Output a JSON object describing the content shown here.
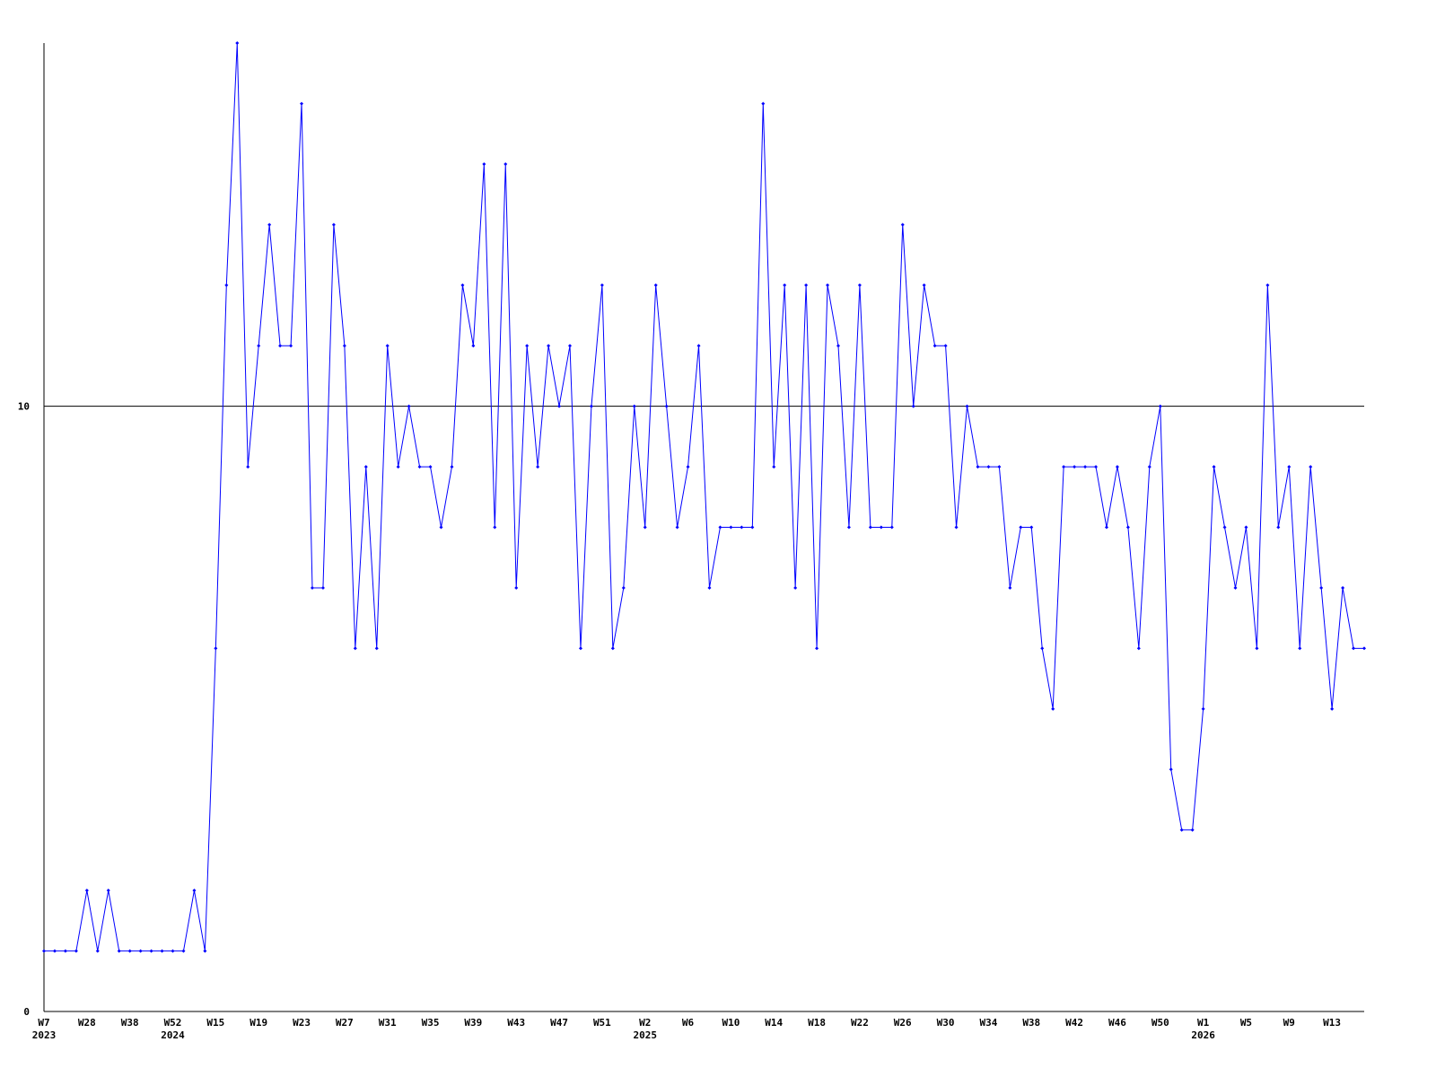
{
  "chart_data": {
    "type": "line",
    "categories": [
      "W7",
      null,
      null,
      null,
      "W28",
      null,
      null,
      null,
      "W38",
      null,
      null,
      null,
      "W52",
      null,
      null,
      null,
      "W15",
      null,
      null,
      null,
      "W19",
      null,
      null,
      null,
      "W23",
      null,
      null,
      null,
      "W27",
      null,
      null,
      null,
      "W31",
      null,
      null,
      null,
      "W35",
      null,
      null,
      null,
      "W39",
      null,
      null,
      null,
      "W43",
      null,
      null,
      null,
      "W47",
      null,
      null,
      null,
      "W51",
      null,
      null,
      null,
      "W2",
      null,
      null,
      null,
      "W6",
      null,
      null,
      null,
      "W10",
      null,
      null,
      null,
      "W14",
      null,
      null,
      null,
      "W18",
      null,
      null,
      null,
      "W22",
      null,
      null,
      null,
      "W26",
      null,
      null,
      null,
      "W30",
      null,
      null,
      null,
      "W34",
      null,
      null,
      null,
      "W38",
      null,
      null,
      null,
      "W42",
      null,
      null,
      null,
      "W46",
      null,
      null,
      null,
      "W50",
      null,
      null,
      null,
      "W1",
      null,
      null,
      null,
      "W5",
      null,
      null,
      null,
      "W9",
      null,
      null,
      null,
      "W13",
      null,
      null,
      null
    ],
    "year_labels": [
      {
        "category_index": 0,
        "label": "2023"
      },
      {
        "category_index": 12,
        "label": "2024"
      },
      {
        "category_index": 56,
        "label": "2025"
      },
      {
        "category_index": 108,
        "label": "2026"
      }
    ],
    "series": [
      {
        "color": "#0000ff",
        "values": [
          1,
          1,
          1,
          1,
          2,
          1,
          2,
          1,
          1,
          1,
          1,
          1,
          1,
          1,
          2,
          1,
          6,
          12,
          16,
          9,
          11,
          13,
          11,
          11,
          15,
          7,
          7,
          13,
          11,
          6,
          9,
          6,
          11,
          9,
          10,
          9,
          9,
          8,
          9,
          12,
          11,
          14,
          8,
          14,
          7,
          11,
          9,
          11,
          10,
          11,
          6,
          10,
          12,
          6,
          7,
          10,
          8,
          12,
          10,
          8,
          9,
          11,
          7,
          8,
          8,
          8,
          8,
          15,
          9,
          12,
          7,
          12,
          6,
          12,
          11,
          8,
          12,
          8,
          8,
          8,
          13,
          10,
          12,
          11,
          11,
          8,
          10,
          9,
          9,
          9,
          7,
          8,
          8,
          6,
          5,
          9,
          9,
          9,
          9,
          8,
          9,
          8,
          6,
          9,
          10,
          4,
          3,
          3,
          5,
          9,
          8,
          7,
          8,
          6,
          12,
          8,
          9,
          6,
          9,
          7,
          5,
          7,
          6,
          6
        ]
      }
    ],
    "ylim": [
      0,
      16
    ],
    "yticks": [
      0,
      10
    ],
    "grid": true
  }
}
